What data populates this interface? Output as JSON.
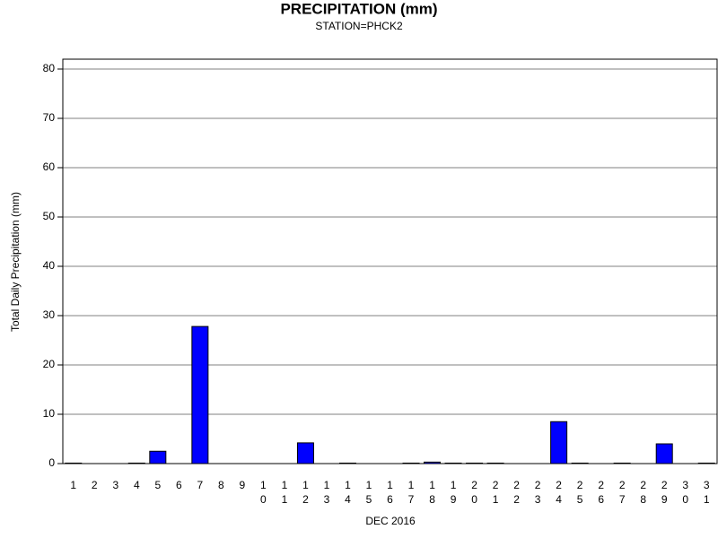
{
  "chart_data": {
    "type": "bar",
    "title": "PRECIPITATION (mm)",
    "subtitle": "STATION=PHCK2",
    "x_label": "DEC 2016",
    "y_label": "Total Daily Precipitation (mm)",
    "categories": [
      "1",
      "2",
      "3",
      "4",
      "5",
      "6",
      "7",
      "8",
      "9",
      "10",
      "11",
      "12",
      "13",
      "14",
      "15",
      "16",
      "17",
      "18",
      "19",
      "20",
      "21",
      "22",
      "23",
      "24",
      "25",
      "26",
      "27",
      "28",
      "29",
      "30",
      "31"
    ],
    "values": [
      0.1,
      0,
      0,
      0.1,
      2.5,
      0,
      27.8,
      0,
      0,
      0,
      0,
      4.2,
      0,
      0.1,
      0,
      0,
      0.1,
      0.3,
      0.1,
      0.1,
      0.1,
      0,
      0,
      8.5,
      0.1,
      0,
      0.1,
      0,
      4.0,
      0,
      0.1
    ],
    "color": "#0000ff",
    "ylim": [
      0,
      82
    ],
    "yticks": [
      0,
      10,
      20,
      30,
      40,
      50,
      60,
      70,
      80
    ],
    "grid": true
  }
}
